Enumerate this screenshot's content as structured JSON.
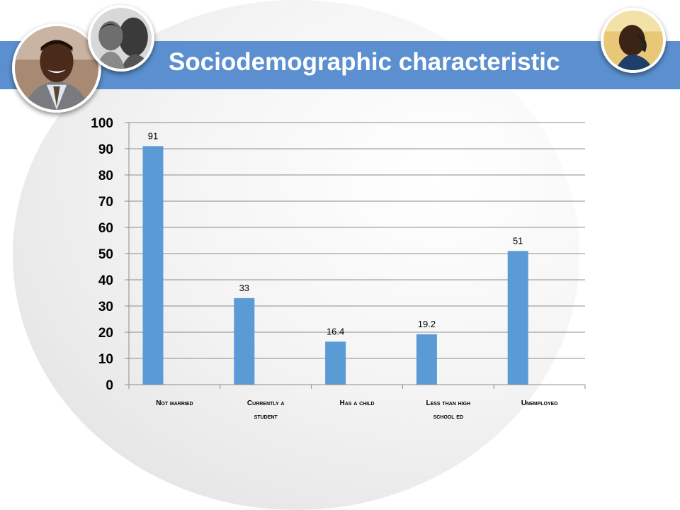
{
  "slide": {
    "title": "Sociodemographic characteristic",
    "accent_color": "#5b8fcf",
    "photos": [
      "portrait-man-icon",
      "adult-and-child-icon",
      "man-on-phone-icon"
    ]
  },
  "chart_data": {
    "type": "bar",
    "title": "",
    "categories": [
      [
        "Not married"
      ],
      [
        "Currently a",
        "student"
      ],
      [
        "Has a child"
      ],
      [
        "Less than high",
        "school ed"
      ],
      [
        "Unemployed"
      ]
    ],
    "values": [
      91,
      33,
      16.4,
      19.2,
      51
    ],
    "value_labels": [
      "91",
      "33",
      "16.4",
      "19.2",
      "51"
    ],
    "ylim": [
      0,
      100
    ],
    "yticks": [
      "0",
      "10",
      "20",
      "30",
      "40",
      "50",
      "60",
      "70",
      "80",
      "90",
      "100"
    ],
    "grid": true,
    "legend": "none",
    "bar_color": "#5b9bd5",
    "xlabel": "",
    "ylabel": ""
  }
}
